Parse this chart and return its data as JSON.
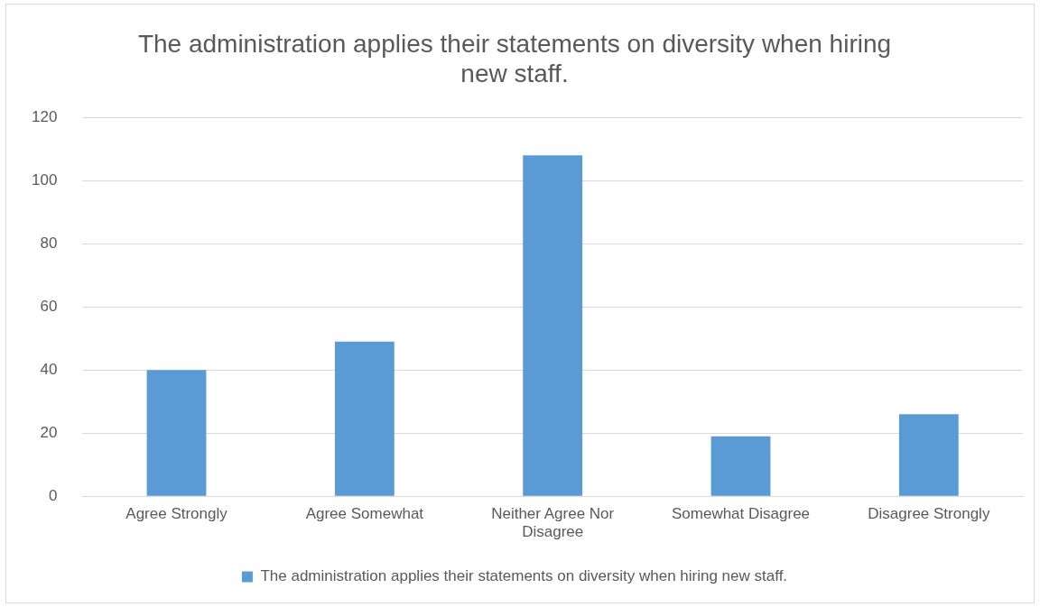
{
  "chart_data": {
    "type": "bar",
    "title": "The administration applies their statements on diversity when hiring new staff.",
    "categories": [
      "Agree Strongly",
      "Agree Somewhat",
      "Neither Agree Nor Disagree",
      "Somewhat Disagree",
      "Disagree Strongly"
    ],
    "series": [
      {
        "name": "The administration applies their statements on diversity when hiring new staff.",
        "color": "#5b9bd5",
        "values": [
          40,
          49,
          108,
          19,
          26
        ]
      }
    ],
    "ylim": [
      0,
      120
    ],
    "yticks": [
      0,
      20,
      40,
      60,
      80,
      100,
      120
    ],
    "grid": "y",
    "legend": "bottom"
  }
}
